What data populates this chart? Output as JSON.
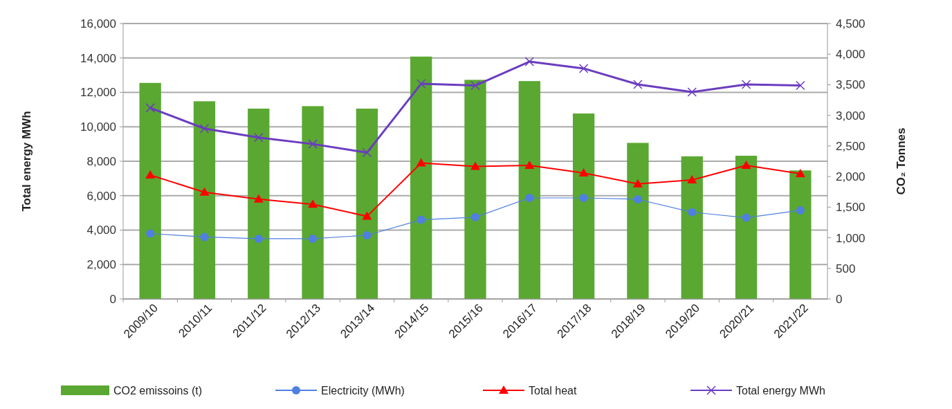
{
  "chart_data": {
    "type": "bar",
    "categories": [
      "2009/10",
      "2010/11",
      "2011/12",
      "2012/13",
      "2013/14",
      "2014/15",
      "2015/16",
      "2016/17",
      "2017/18",
      "2018/19",
      "2019/20",
      "2020/21",
      "2021/22"
    ],
    "ylabel": "Total energy MWh",
    "y2label": "CO₂ Tonnes",
    "ylim": [
      0,
      16000
    ],
    "yticks": [
      {
        "value": 0,
        "label": "0"
      },
      {
        "value": 2000,
        "label": "2,000"
      },
      {
        "value": 4000,
        "label": "4,000"
      },
      {
        "value": 6000,
        "label": "6,000"
      },
      {
        "value": 8000,
        "label": "8,000"
      },
      {
        "value": 10000,
        "label": "10,000"
      },
      {
        "value": 12000,
        "label": "12,000"
      },
      {
        "value": 14000,
        "label": "14,000"
      },
      {
        "value": 16000,
        "label": "16,000"
      }
    ],
    "y2lim": [
      0,
      4500
    ],
    "y2ticks": [
      0,
      500,
      {
        "value": 1000,
        "label": "1,000"
      },
      {
        "value": 1500,
        "label": "1,500"
      },
      {
        "value": 2000,
        "label": "2,000"
      },
      {
        "value": 2500,
        "label": "2,500"
      },
      {
        "value": 3000,
        "label": "3,000"
      },
      {
        "value": 3500,
        "label": "3,500"
      },
      {
        "value": 4000,
        "label": "4,000"
      },
      {
        "value": 4500,
        "label": "4,500"
      }
    ],
    "grid": "y",
    "legend": "bottom",
    "series": [
      {
        "name": "CO2 emissoins (t)",
        "axis": "y2",
        "color": "#5aa832",
        "values": [
          3530,
          3230,
          3110,
          3150,
          3110,
          3960,
          3580,
          3560,
          3030,
          2550,
          2330,
          2340,
          2100
        ]
      },
      {
        "name": "Electricity (MWh)",
        "type": "line",
        "marker": "circle",
        "color": "#4f7fe0",
        "values": [
          3800,
          3600,
          3500,
          3500,
          3700,
          4600,
          4750,
          5870,
          5870,
          5790,
          5040,
          4720,
          5150
        ]
      },
      {
        "name": "Total heat",
        "type": "line",
        "marker": "triangle",
        "color": "#ff0000",
        "values": [
          7200,
          6200,
          5800,
          5500,
          4800,
          7900,
          7700,
          7760,
          7320,
          6680,
          6910,
          7760,
          7280
        ]
      },
      {
        "name": "Total energy MWh",
        "type": "line",
        "marker": "cross",
        "color": "#6a3cc0",
        "values": [
          11100,
          9900,
          9380,
          9000,
          8500,
          12500,
          12400,
          13790,
          13390,
          12460,
          12020,
          12460,
          12400
        ]
      }
    ]
  }
}
